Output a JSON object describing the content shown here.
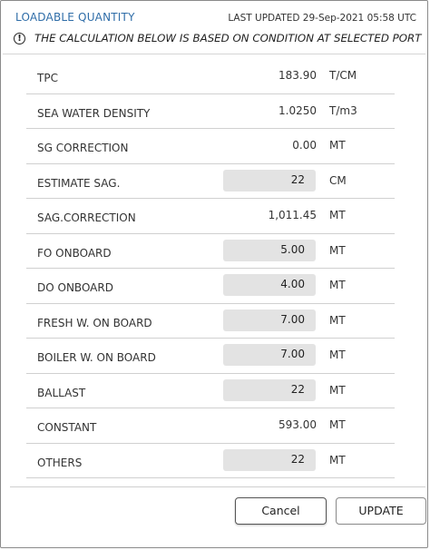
{
  "header": {
    "title": "LOADABLE QUANTITY",
    "last_updated": "LAST UPDATED 29-Sep-2021 05:58 UTC"
  },
  "notice": {
    "icon": "info-icon",
    "text": "THE CALCULATION BELOW IS BASED ON CONDITION AT SELECTED PORT"
  },
  "rows": [
    {
      "label": "TPC",
      "value": "183.90",
      "unit": "T/CM",
      "editable": false
    },
    {
      "label": "SEA WATER DENSITY",
      "value": "1.0250",
      "unit": "T/m3",
      "editable": false
    },
    {
      "label": "SG CORRECTION",
      "value": "0.00",
      "unit": "MT",
      "editable": false
    },
    {
      "label": "ESTIMATE SAG.",
      "value": "22",
      "unit": "CM",
      "editable": true
    },
    {
      "label": "SAG.CORRECTION",
      "value": "1,011.45",
      "unit": "MT",
      "editable": false
    },
    {
      "label": "FO ONBOARD",
      "value": "5.00",
      "unit": "MT",
      "editable": true
    },
    {
      "label": "DO ONBOARD",
      "value": "4.00",
      "unit": "MT",
      "editable": true
    },
    {
      "label": "FRESH W. ON BOARD",
      "value": "7.00",
      "unit": "MT",
      "editable": true
    },
    {
      "label": "BOILER W. ON BOARD",
      "value": "7.00",
      "unit": "MT",
      "editable": true
    },
    {
      "label": "BALLAST",
      "value": "22",
      "unit": "MT",
      "editable": true
    },
    {
      "label": "CONSTANT",
      "value": "593.00",
      "unit": "MT",
      "editable": false
    },
    {
      "label": "OTHERS",
      "value": "22",
      "unit": "MT",
      "editable": true
    }
  ],
  "buttons": {
    "cancel": "Cancel",
    "update": "UPDATE"
  },
  "colors": {
    "title": "#2f6da8",
    "input_bg": "#e3e3e3",
    "divider": "#d0d0d0"
  }
}
